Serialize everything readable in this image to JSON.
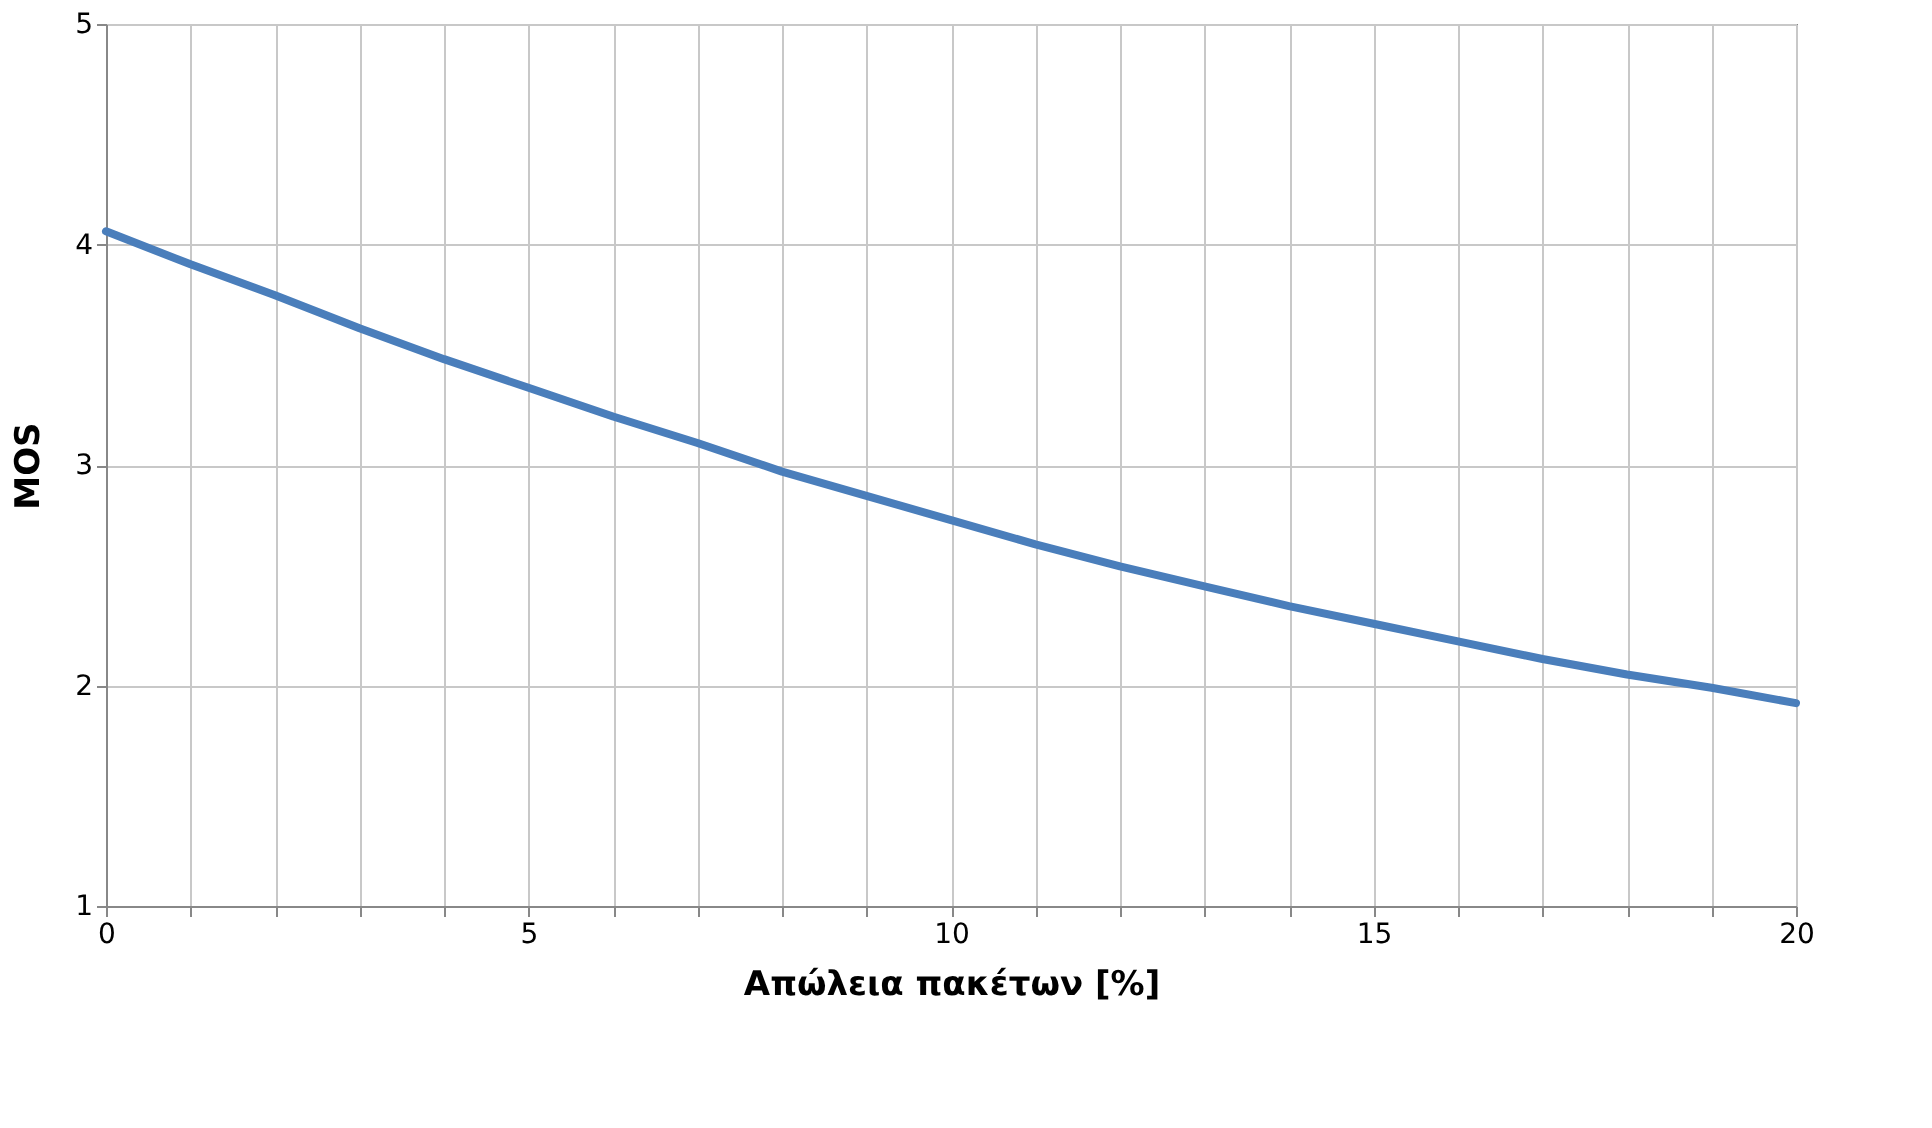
{
  "chart_data": {
    "type": "line",
    "xlabel": "Απώλεια πακέτων [%]",
    "ylabel": "MOS",
    "x": [
      0,
      1,
      2,
      3,
      4,
      5,
      6,
      7,
      8,
      9,
      10,
      11,
      12,
      13,
      14,
      15,
      16,
      17,
      18,
      19,
      20
    ],
    "series": [
      {
        "color": "#4a7ebb",
        "values": [
          4.06,
          3.91,
          3.77,
          3.62,
          3.48,
          3.35,
          3.22,
          3.1,
          2.97,
          2.86,
          2.75,
          2.64,
          2.54,
          2.45,
          2.36,
          2.28,
          2.2,
          2.12,
          2.05,
          1.99,
          1.92
        ]
      }
    ],
    "xlim": [
      0,
      20
    ],
    "xticks": [
      0,
      {
        "value": 1,
        "label": null
      },
      {
        "value": 2,
        "label": null
      },
      {
        "value": 3,
        "label": null
      },
      {
        "value": 4,
        "label": null
      },
      5,
      {
        "value": 6,
        "label": null
      },
      {
        "value": 7,
        "label": null
      },
      {
        "value": 8,
        "label": null
      },
      {
        "value": 9,
        "label": null
      },
      10,
      {
        "value": 11,
        "label": null
      },
      {
        "value": 12,
        "label": null
      },
      {
        "value": 13,
        "label": null
      },
      {
        "value": 14,
        "label": null
      },
      15,
      {
        "value": 16,
        "label": null
      },
      {
        "value": 17,
        "label": null
      },
      {
        "value": 18,
        "label": null
      },
      {
        "value": 19,
        "label": null
      },
      20
    ],
    "ylim": [
      1,
      5
    ],
    "yticks": [
      1,
      2,
      3,
      4,
      5
    ],
    "grid": true,
    "marker": "none",
    "line_style": "solid"
  }
}
